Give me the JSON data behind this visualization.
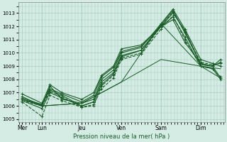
{
  "xlabel": "Pression niveau de la mer( hPa )",
  "ylim": [
    1004.8,
    1013.8
  ],
  "yticks": [
    1005,
    1006,
    1007,
    1008,
    1009,
    1010,
    1011,
    1012,
    1013
  ],
  "day_labels": [
    "Mer",
    "Lun",
    "Jeu",
    "Ven",
    "Sam",
    "Dim"
  ],
  "day_positions": [
    0.0,
    0.5,
    1.5,
    2.5,
    3.5,
    4.5
  ],
  "xlim": [
    -0.1,
    5.1
  ],
  "bg_color": "#d4ece4",
  "grid_color": "#a0c8b8",
  "line_color": "#1a5c28",
  "minor_x_step": 0.0833,
  "series": [
    {
      "x": [
        0.0,
        0.5,
        0.7,
        1.0,
        1.5,
        1.8,
        2.0,
        2.3,
        2.5,
        3.0,
        3.5,
        3.8,
        4.1,
        4.5,
        4.8,
        5.0
      ],
      "y": [
        1006.5,
        1006.1,
        1007.2,
        1006.8,
        1006.0,
        1006.3,
        1007.8,
        1008.5,
        1009.8,
        1010.2,
        1012.1,
        1013.2,
        1011.5,
        1009.2,
        1009.0,
        1008.1
      ],
      "style": "-",
      "marker": "+",
      "lw": 0.8,
      "ms": 2.5
    },
    {
      "x": [
        0.0,
        0.5,
        0.7,
        1.0,
        1.5,
        1.8,
        2.0,
        2.3,
        2.5,
        3.0,
        3.5,
        3.8,
        4.1,
        4.5,
        4.8,
        5.0
      ],
      "y": [
        1006.7,
        1006.0,
        1007.5,
        1006.5,
        1006.2,
        1006.5,
        1008.0,
        1008.7,
        1010.0,
        1010.4,
        1012.2,
        1013.3,
        1011.8,
        1009.5,
        1009.2,
        1009.0
      ],
      "style": "-",
      "marker": "+",
      "lw": 0.8,
      "ms": 2.5
    },
    {
      "x": [
        0.0,
        0.5,
        0.7,
        1.0,
        1.5,
        1.8,
        2.0,
        2.3,
        2.5,
        3.0,
        3.5,
        3.8,
        4.1,
        4.5,
        4.8,
        5.0
      ],
      "y": [
        1006.3,
        1005.2,
        1006.8,
        1006.4,
        1005.9,
        1006.0,
        1007.5,
        1008.3,
        1009.6,
        1010.0,
        1012.0,
        1013.1,
        1011.6,
        1009.3,
        1009.1,
        1009.2
      ],
      "style": "--",
      "marker": "+",
      "lw": 0.8,
      "ms": 2.5
    },
    {
      "x": [
        0.0,
        0.5,
        0.7,
        1.0,
        1.5,
        1.8,
        2.0,
        2.3,
        2.5,
        3.0,
        3.5,
        3.8,
        4.1,
        4.5,
        4.8,
        5.0
      ],
      "y": [
        1006.4,
        1005.8,
        1007.0,
        1006.6,
        1006.0,
        1006.3,
        1007.6,
        1008.4,
        1009.7,
        1010.2,
        1012.0,
        1013.0,
        1011.7,
        1009.1,
        1009.0,
        1009.3
      ],
      "style": "-",
      "marker": "+",
      "lw": 0.8,
      "ms": 2.5
    },
    {
      "x": [
        0.0,
        0.5,
        0.7,
        1.0,
        1.5,
        1.8,
        2.0,
        2.3,
        2.5,
        3.0,
        3.5,
        3.8,
        4.1,
        4.5,
        4.8,
        5.0
      ],
      "y": [
        1006.6,
        1006.1,
        1007.3,
        1006.9,
        1006.3,
        1006.8,
        1008.2,
        1008.9,
        1010.1,
        1010.5,
        1012.0,
        1012.7,
        1011.2,
        1009.0,
        1008.8,
        1008.0
      ],
      "style": "-",
      "marker": "+",
      "lw": 0.8,
      "ms": 2.5
    },
    {
      "x": [
        0.0,
        0.5,
        0.7,
        1.0,
        1.5,
        1.8,
        2.0,
        2.3,
        2.5,
        3.0,
        3.5,
        3.8,
        4.1,
        4.5,
        4.8,
        5.0
      ],
      "y": [
        1006.9,
        1006.2,
        1007.6,
        1007.0,
        1006.5,
        1007.0,
        1008.3,
        1009.0,
        1010.3,
        1010.6,
        1012.0,
        1012.5,
        1010.8,
        1009.2,
        1009.0,
        1009.5
      ],
      "style": "-",
      "marker": "+",
      "lw": 0.8,
      "ms": 2.5
    },
    {
      "x": [
        0.0,
        0.5,
        0.7,
        1.0,
        1.5,
        1.8,
        2.0,
        2.3,
        2.5,
        3.0,
        3.5,
        3.8,
        4.1,
        4.5,
        4.8,
        5.0
      ],
      "y": [
        1006.4,
        1006.0,
        1007.1,
        1006.7,
        1005.9,
        1006.1,
        1007.3,
        1008.1,
        1009.5,
        1009.9,
        1011.8,
        1012.8,
        1011.0,
        1009.0,
        1008.8,
        1008.2
      ],
      "style": "--",
      "marker": "+",
      "lw": 0.8,
      "ms": 2.5
    },
    {
      "x": [
        0.0,
        0.5,
        1.5,
        2.5,
        3.5,
        4.5,
        5.0
      ],
      "y": [
        1006.5,
        1006.0,
        1006.2,
        1007.8,
        1009.5,
        1009.0,
        1008.1
      ],
      "style": "-",
      "marker": null,
      "lw": 0.7,
      "ms": 0
    },
    {
      "x": [
        0.0,
        0.5,
        1.5,
        2.5,
        3.5,
        4.5,
        5.0
      ],
      "y": [
        1006.5,
        1006.0,
        1006.2,
        1007.8,
        1012.2,
        1009.0,
        1008.8
      ],
      "style": "-",
      "marker": null,
      "lw": 0.7,
      "ms": 0
    }
  ]
}
